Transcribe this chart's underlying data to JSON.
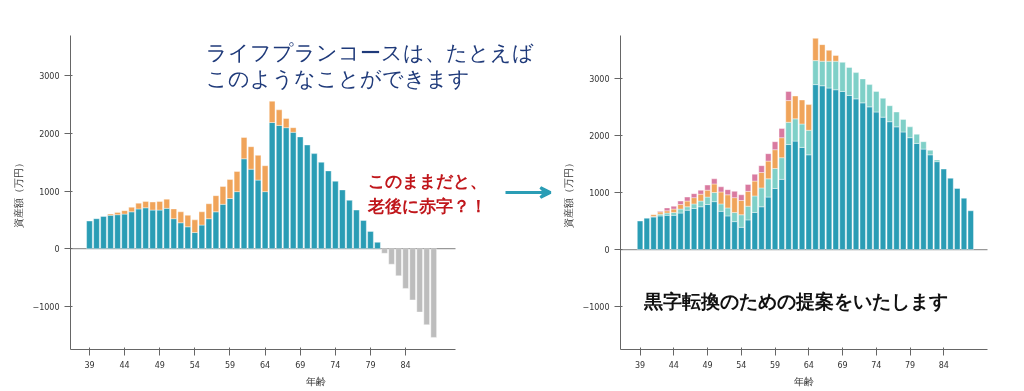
{
  "chart_data": [
    {
      "type": "bar",
      "stacked": true,
      "x": [
        39,
        40,
        41,
        42,
        43,
        44,
        45,
        46,
        47,
        48,
        49,
        50,
        51,
        52,
        53,
        54,
        55,
        56,
        57,
        58,
        59,
        60,
        61,
        62,
        63,
        64,
        65,
        66,
        67,
        68,
        69,
        70,
        71,
        72,
        73,
        74,
        75,
        76,
        77,
        78,
        79,
        80,
        81,
        82,
        83,
        84,
        85,
        86,
        87,
        88
      ],
      "series": [
        {
          "color": "#2a9db5",
          "values": [
            480,
            520,
            560,
            580,
            590,
            600,
            640,
            690,
            710,
            670,
            670,
            700,
            520,
            450,
            380,
            280,
            410,
            520,
            640,
            770,
            870,
            990,
            1560,
            1380,
            1190,
            990,
            2190,
            2140,
            2100,
            2020,
            1940,
            1800,
            1650,
            1500,
            1350,
            1170,
            1020,
            840,
            670,
            490,
            300,
            110,
            null,
            null,
            null,
            null,
            null,
            null,
            null,
            null
          ]
        },
        {
          "color": "#f0a45a",
          "values": [
            null,
            null,
            null,
            20,
            40,
            60,
            80,
            100,
            110,
            140,
            150,
            160,
            170,
            190,
            200,
            220,
            230,
            260,
            280,
            310,
            330,
            350,
            370,
            390,
            430,
            450,
            370,
            270,
            160,
            80,
            null,
            null,
            null,
            null,
            null,
            null,
            null,
            null,
            null,
            null,
            null,
            null,
            null,
            null,
            null,
            null,
            null,
            null,
            null,
            null
          ]
        },
        {
          "color": "#bdbdbd",
          "values": [
            null,
            null,
            null,
            null,
            null,
            null,
            null,
            null,
            null,
            null,
            null,
            null,
            null,
            null,
            null,
            null,
            null,
            null,
            null,
            null,
            null,
            null,
            null,
            null,
            null,
            null,
            null,
            null,
            null,
            null,
            null,
            null,
            null,
            null,
            null,
            null,
            null,
            null,
            null,
            null,
            null,
            null,
            -80,
            -270,
            -470,
            -690,
            -890,
            -1100,
            -1320,
            -1540
          ]
        }
      ],
      "xlim": [
        36.3,
        91.1
      ],
      "ylim": [
        -1750,
        3700
      ],
      "xticks": [
        39,
        44,
        49,
        54,
        59,
        64,
        69,
        74,
        79,
        84
      ],
      "yticks": [
        -1000,
        0,
        1000,
        2000,
        3000
      ],
      "xlabel": "年齢",
      "ylabel": "資産額（万円）",
      "grid": false,
      "ref_lines": [
        {
          "axis": "y",
          "value": 0
        }
      ],
      "annotations": [
        "ライフプランコースは、たとえば",
        "このようなことができます",
        "このままだと、",
        "老後に赤字？！"
      ]
    },
    {
      "type": "bar",
      "stacked": true,
      "x": [
        39,
        40,
        41,
        42,
        43,
        44,
        45,
        46,
        47,
        48,
        49,
        50,
        51,
        52,
        53,
        54,
        55,
        56,
        57,
        58,
        59,
        60,
        61,
        62,
        63,
        64,
        65,
        66,
        67,
        68,
        69,
        70,
        71,
        72,
        73,
        74,
        75,
        76,
        77,
        78,
        79,
        80,
        81,
        82,
        83,
        84,
        85,
        86,
        87,
        88
      ],
      "series": [
        {
          "color": "#2a9db5",
          "values": [
            500,
            550,
            570,
            590,
            600,
            600,
            640,
            690,
            720,
            750,
            790,
            840,
            670,
            590,
            490,
            390,
            520,
            650,
            750,
            920,
            1070,
            1230,
            1840,
            1900,
            1790,
            1660,
            2890,
            2870,
            2830,
            2800,
            2770,
            2700,
            2640,
            2570,
            2500,
            2410,
            2320,
            2240,
            2150,
            2060,
            1960,
            1860,
            1760,
            1660,
            1540,
            1410,
            1250,
            1070,
            900,
            680
          ]
        },
        {
          "color": "#7fd0c8",
          "values": [
            null,
            null,
            10,
            30,
            40,
            50,
            70,
            60,
            80,
            100,
            130,
            160,
            130,
            140,
            160,
            220,
            240,
            290,
            330,
            320,
            350,
            380,
            390,
            390,
            410,
            430,
            420,
            430,
            470,
            500,
            510,
            490,
            460,
            420,
            390,
            360,
            330,
            280,
            260,
            220,
            190,
            160,
            130,
            80,
            30,
            null,
            null,
            null,
            null,
            null
          ]
        },
        {
          "color": "#f0a45a",
          "values": [
            null,
            null,
            30,
            40,
            40,
            60,
            80,
            100,
            110,
            120,
            120,
            150,
            210,
            230,
            260,
            250,
            260,
            260,
            270,
            310,
            330,
            350,
            380,
            400,
            420,
            450,
            390,
            290,
            190,
            100,
            null,
            null,
            null,
            null,
            null,
            null,
            null,
            null,
            null,
            null,
            null,
            null,
            null,
            null,
            null,
            null,
            null,
            null,
            null,
            null
          ]
        },
        {
          "color": "#d97aa0",
          "values": [
            null,
            null,
            null,
            10,
            50,
            50,
            60,
            70,
            70,
            70,
            90,
            90,
            90,
            90,
            110,
            100,
            120,
            120,
            120,
            130,
            140,
            160,
            160,
            null,
            null,
            null,
            null,
            null,
            null,
            null,
            null,
            null,
            null,
            null,
            null,
            null,
            null,
            null,
            null,
            null,
            null,
            null,
            null,
            null,
            null,
            null,
            null,
            null,
            null,
            null
          ]
        }
      ],
      "xlim": [
        36.1,
        91.2
      ],
      "ylim": [
        -1750,
        3750
      ],
      "xticks": [
        39,
        44,
        49,
        54,
        59,
        64,
        69,
        74,
        79,
        84
      ],
      "yticks": [
        -1000,
        0,
        1000,
        2000,
        3000
      ],
      "xlabel": "年齢",
      "ylabel": "資産額（万円）",
      "grid": false,
      "ref_lines": [
        {
          "axis": "y",
          "value": 0
        }
      ],
      "annotations": [
        "黒字転換のための提案をいたします"
      ]
    }
  ]
}
